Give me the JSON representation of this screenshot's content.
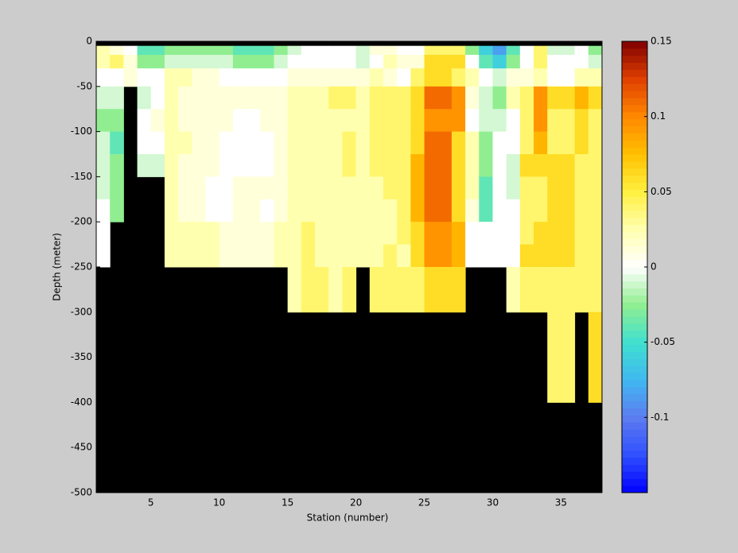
{
  "chart_data": {
    "type": "heatmap",
    "xlabel": "Station (number)",
    "ylabel": "Depth (meter)",
    "xlim": [
      1,
      38
    ],
    "ylim": [
      -500,
      0
    ],
    "xticks": [
      5,
      10,
      15,
      20,
      25,
      30,
      35
    ],
    "yticks": [
      0,
      -50,
      -100,
      -150,
      -200,
      -250,
      -300,
      -350,
      -400,
      -450,
      -500
    ],
    "x_edges": [
      1,
      2,
      3,
      4,
      5,
      6,
      7,
      8,
      9,
      10,
      11,
      12,
      13,
      14,
      15,
      16,
      17,
      18,
      19,
      20,
      21,
      22,
      23,
      24,
      25,
      26,
      27,
      28,
      29,
      30,
      31,
      32,
      33,
      34,
      35,
      36,
      37,
      38
    ],
    "y_edges": [
      -5,
      -15,
      -30,
      -50,
      -75,
      -100,
      -125,
      -150,
      -175,
      -200,
      -225,
      -250,
      -300,
      -400
    ],
    "missing_color": "#000000",
    "values": [
      [
        0.025,
        0.025,
        0,
        -0.01,
        -0.025,
        -0.01,
        -0.01,
        -0.01,
        0,
        0,
        0,
        null,
        null
      ],
      [
        0.012,
        0.04,
        0,
        -0.01,
        -0.025,
        -0.04,
        -0.025,
        -0.025,
        -0.025,
        null,
        null,
        null,
        null
      ],
      [
        0,
        0.012,
        0.012,
        null,
        null,
        null,
        null,
        null,
        null,
        null,
        null,
        null,
        null
      ],
      [
        -0.04,
        -0.025,
        0,
        -0.01,
        0,
        0,
        -0.01,
        null,
        null,
        null,
        null,
        null,
        null
      ],
      [
        -0.04,
        -0.025,
        0,
        0,
        0.012,
        0,
        -0.01,
        null,
        null,
        null,
        null,
        null,
        null
      ],
      [
        -0.025,
        -0.01,
        0.025,
        0.025,
        0.025,
        0.025,
        0.025,
        0.025,
        0.025,
        0.025,
        0.025,
        null,
        null
      ],
      [
        -0.025,
        -0.01,
        0.025,
        0.012,
        0.012,
        0.025,
        0.012,
        0.012,
        0.012,
        0.025,
        0.025,
        null,
        null
      ],
      [
        -0.025,
        -0.01,
        0.012,
        0.012,
        0.012,
        0.012,
        0.012,
        0.012,
        0.012,
        0.025,
        0.025,
        null,
        null
      ],
      [
        -0.025,
        -0.01,
        0.012,
        0.012,
        0.012,
        0.012,
        0.012,
        0,
        0,
        0.025,
        0.025,
        null,
        null
      ],
      [
        -0.025,
        -0.01,
        0,
        0.012,
        0.012,
        0,
        0,
        0,
        0,
        0.012,
        0.012,
        null,
        null
      ],
      [
        -0.04,
        -0.025,
        0,
        0.012,
        0,
        0,
        0,
        0.012,
        0.012,
        0.012,
        0.012,
        null,
        null
      ],
      [
        -0.04,
        -0.025,
        0,
        0.012,
        0,
        0,
        0,
        0.012,
        0.012,
        0.012,
        0.012,
        null,
        null
      ],
      [
        -0.04,
        -0.025,
        0,
        0.012,
        0.012,
        0,
        0,
        0.012,
        0,
        0.012,
        0.012,
        null,
        null
      ],
      [
        -0.025,
        -0.01,
        0,
        0.012,
        0.012,
        0.012,
        0.012,
        0.012,
        0.012,
        0.025,
        0.025,
        null,
        null
      ],
      [
        -0.01,
        0,
        0.012,
        0.025,
        0.025,
        0.025,
        0.025,
        0.025,
        0.025,
        0.025,
        0.025,
        0.025,
        null
      ],
      [
        0,
        0,
        0.012,
        0.025,
        0.025,
        0.025,
        0.025,
        0.025,
        0.025,
        0.04,
        0.04,
        0.04,
        null
      ],
      [
        0,
        0,
        0.012,
        0.025,
        0.025,
        0.025,
        0.025,
        0.025,
        0.025,
        0.025,
        0.025,
        0.04,
        null
      ],
      [
        0,
        0,
        0.012,
        0.04,
        0.025,
        0.025,
        0.025,
        0.025,
        0.025,
        0.025,
        0.025,
        0.025,
        null
      ],
      [
        0,
        0,
        0.012,
        0.04,
        0.025,
        0.04,
        0.04,
        0.025,
        0.025,
        0.025,
        0.025,
        0.04,
        null
      ],
      [
        -0.01,
        -0.01,
        0.012,
        0.025,
        0.025,
        0.025,
        0.025,
        0.025,
        0.025,
        0.025,
        0.025,
        null,
        null
      ],
      [
        0.012,
        0,
        0.025,
        0.04,
        0.04,
        0.04,
        0.04,
        0.025,
        0.025,
        0.025,
        0.025,
        0.04,
        null
      ],
      [
        0.012,
        0.025,
        0.012,
        0.04,
        0.04,
        0.04,
        0.04,
        0.04,
        0.025,
        0.025,
        0.04,
        0.04,
        null
      ],
      [
        0,
        0.012,
        0,
        0.04,
        0.04,
        0.04,
        0.04,
        0.04,
        0.04,
        0.04,
        0.025,
        0.04,
        null
      ],
      [
        0,
        0.012,
        0.04,
        0.06,
        0.06,
        0.06,
        0.08,
        0.08,
        0.08,
        0.06,
        0.06,
        0.04,
        null
      ],
      [
        0.04,
        0.06,
        0.06,
        0.11,
        0.095,
        0.11,
        0.11,
        0.11,
        0.11,
        0.095,
        0.095,
        0.06,
        null
      ],
      [
        0.04,
        0.06,
        0.06,
        0.11,
        0.095,
        0.11,
        0.11,
        0.11,
        0.11,
        0.095,
        0.095,
        0.06,
        null
      ],
      [
        0.04,
        0.06,
        0.04,
        0.095,
        0.095,
        0.06,
        0.06,
        0.06,
        0.06,
        0.08,
        0.08,
        0.06,
        null
      ],
      [
        -0.025,
        0,
        0.025,
        0.012,
        0,
        0.025,
        0.025,
        0.025,
        0.012,
        0,
        0,
        null,
        null
      ],
      [
        -0.06,
        -0.04,
        0,
        -0.01,
        -0.01,
        -0.025,
        -0.025,
        -0.04,
        -0.04,
        0,
        0,
        null,
        null
      ],
      [
        -0.085,
        -0.06,
        -0.01,
        -0.025,
        -0.01,
        0,
        0,
        0,
        0,
        0,
        0,
        null,
        null
      ],
      [
        -0.04,
        -0.025,
        0.012,
        0.025,
        0,
        0,
        -0.01,
        -0.01,
        0,
        0,
        0,
        0.025,
        null
      ],
      [
        0,
        0,
        0.012,
        0.04,
        0.04,
        0.04,
        0.06,
        0.04,
        0.04,
        0.04,
        0.06,
        0.04,
        null
      ],
      [
        0.04,
        0.04,
        0.025,
        0.095,
        0.095,
        0.08,
        0.06,
        0.04,
        0.04,
        0.06,
        0.06,
        0.04,
        null
      ],
      [
        -0.01,
        0,
        0,
        0.06,
        0.04,
        0.04,
        0.06,
        0.06,
        0.06,
        0.06,
        0.06,
        0.04,
        0.04
      ],
      [
        -0.01,
        0,
        0,
        0.06,
        0.04,
        0.04,
        0.06,
        0.06,
        0.06,
        0.06,
        0.06,
        0.04,
        0.04
      ],
      [
        0,
        0,
        0.025,
        0.08,
        0.06,
        0.06,
        0.04,
        0.04,
        0.04,
        0.04,
        0.04,
        0.04,
        null
      ],
      [
        -0.025,
        -0.01,
        0.025,
        0.06,
        0.04,
        0.04,
        0.04,
        0.04,
        0.04,
        0.04,
        0.04,
        0.04,
        0.06
      ]
    ],
    "colorbar": {
      "lim": [
        -0.15,
        0.15
      ],
      "ticks": [
        -0.1,
        -0.05,
        0,
        0.05,
        0.1,
        0.15
      ],
      "colors": [
        "#0000ff",
        "#3050ff",
        "#5c7cf0",
        "#40b8f0",
        "#40e0d0",
        "#90ee90",
        "#ffffff",
        "#ffffb0",
        "#fff040",
        "#ffc000",
        "#ff8800",
        "#e04000",
        "#800000"
      ]
    }
  }
}
